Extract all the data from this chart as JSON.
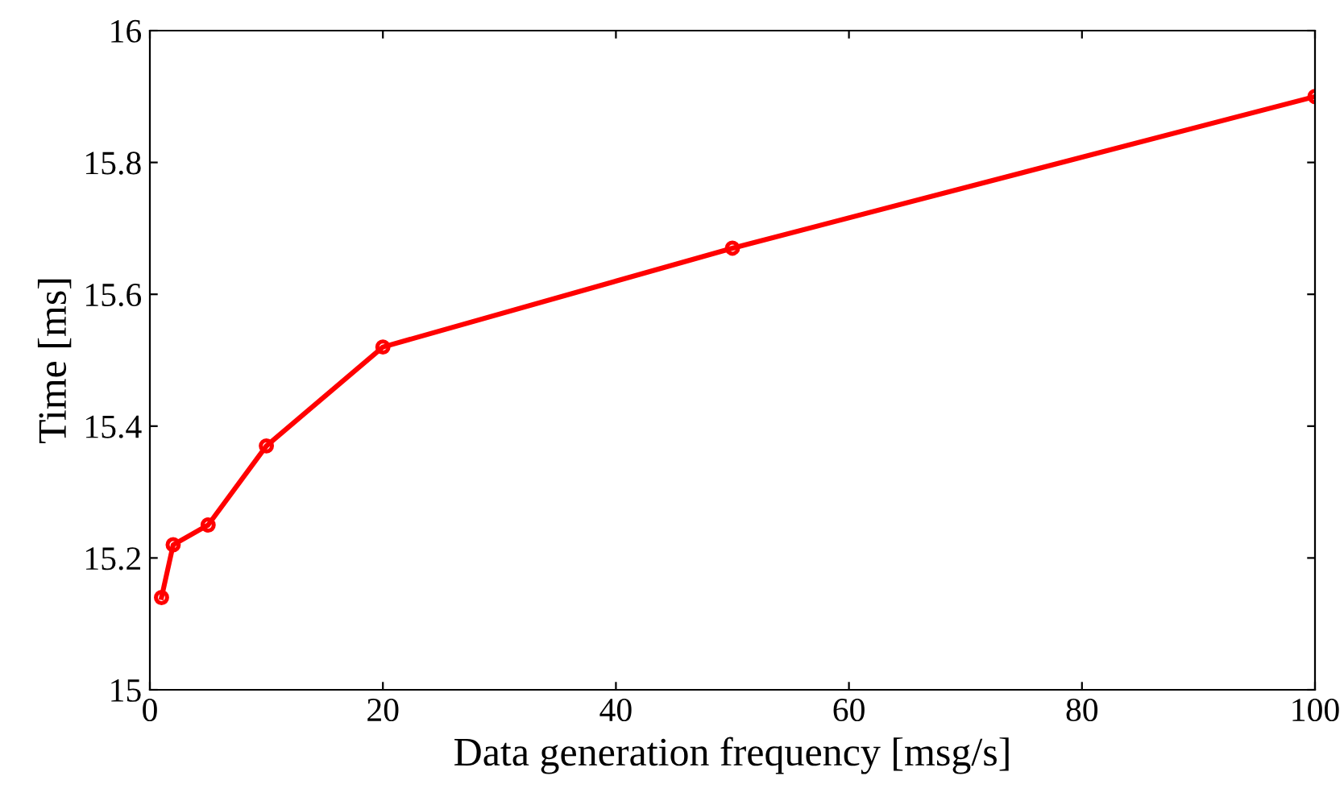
{
  "chart_data": {
    "type": "line",
    "xlabel": "Data generation frequency [msg/s]",
    "ylabel": "Time [ms]",
    "x": [
      1,
      2,
      5,
      10,
      20,
      50,
      100
    ],
    "series": [
      {
        "color": "#ff0000",
        "values": [
          15.14,
          15.22,
          15.25,
          15.37,
          15.52,
          15.67,
          15.9
        ]
      }
    ],
    "xlim": [
      0,
      100
    ],
    "xticks": [
      0,
      20,
      40,
      60,
      80,
      100
    ],
    "ylim": [
      15,
      16
    ],
    "yticks": [
      15,
      15.2,
      15.4,
      15.6,
      15.8,
      16
    ],
    "grid": false,
    "legend": false,
    "marker": "circle",
    "line_style": "solid"
  }
}
